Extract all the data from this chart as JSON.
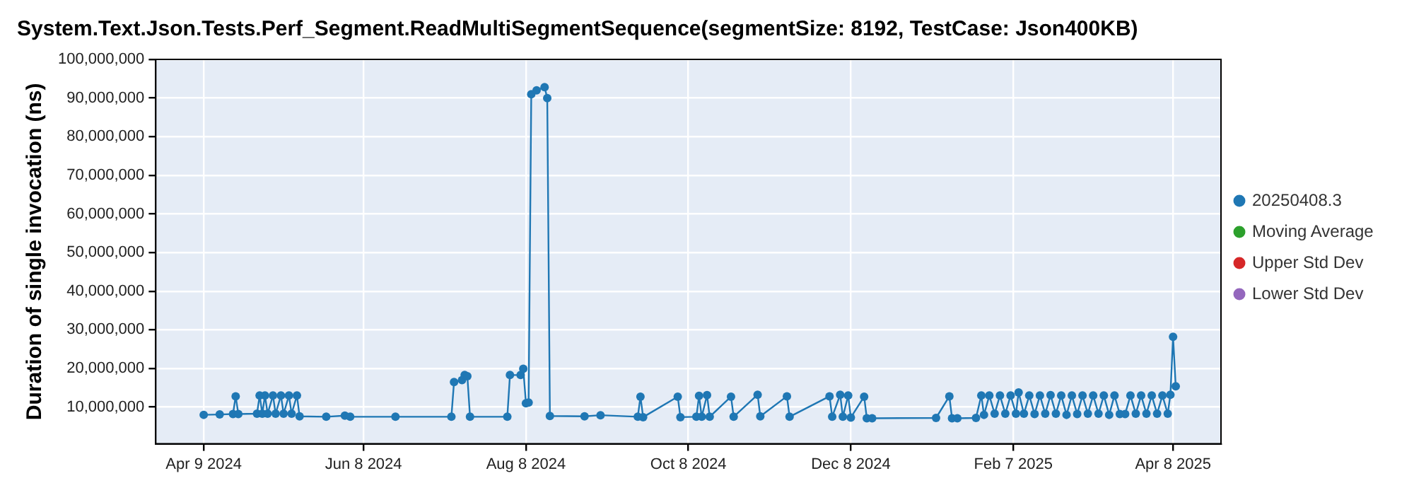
{
  "chart_data": {
    "type": "line",
    "title": "System.Text.Json.Tests.Perf_Segment.ReadMultiSegmentSequence(segmentSize: 8192, TestCase: Json400KB)",
    "ylabel": "Duration of single invocation (ns)",
    "xlim": [
      "2024-03-22",
      "2025-04-26"
    ],
    "xticks": [
      {
        "value": "2024-04-09",
        "label": "Apr 9 2024"
      },
      {
        "value": "2024-06-08",
        "label": "Jun 8 2024"
      },
      {
        "value": "2024-08-08",
        "label": "Aug 8 2024"
      },
      {
        "value": "2024-10-08",
        "label": "Oct 8 2024"
      },
      {
        "value": "2024-12-08",
        "label": "Dec 8 2024"
      },
      {
        "value": "2025-02-07",
        "label": "Feb 7 2025"
      },
      {
        "value": "2025-04-08",
        "label": "Apr 8 2025"
      }
    ],
    "ylim": [
      500000,
      100000000
    ],
    "yticks": [
      {
        "value": 10000000,
        "label": "10,000,000"
      },
      {
        "value": 20000000,
        "label": "20,000,000"
      },
      {
        "value": 30000000,
        "label": "30,000,000"
      },
      {
        "value": 40000000,
        "label": "40,000,000"
      },
      {
        "value": 50000000,
        "label": "50,000,000"
      },
      {
        "value": 60000000,
        "label": "60,000,000"
      },
      {
        "value": 70000000,
        "label": "70,000,000"
      },
      {
        "value": 80000000,
        "label": "80,000,000"
      },
      {
        "value": 90000000,
        "label": "90,000,000"
      },
      {
        "value": 100000000,
        "label": "100,000,000"
      }
    ],
    "grid": true,
    "legend": "right",
    "marker": "circle",
    "line_style": "solid",
    "series": [
      {
        "name": "20250408.3",
        "color": "#1f77b4",
        "x": [
          "2024-04-09",
          "2024-04-15",
          "2024-04-20",
          "2024-04-21",
          "2024-04-22",
          "2024-04-29",
          "2024-04-30",
          "2024-05-01",
          "2024-05-02",
          "2024-05-03",
          "2024-05-05",
          "2024-05-06",
          "2024-05-08",
          "2024-05-09",
          "2024-05-11",
          "2024-05-12",
          "2024-05-14",
          "2024-05-15",
          "2024-05-25",
          "2024-06-01",
          "2024-06-03",
          "2024-06-20",
          "2024-07-11",
          "2024-07-12",
          "2024-07-15",
          "2024-07-16",
          "2024-07-17",
          "2024-07-18",
          "2024-08-01",
          "2024-08-02",
          "2024-08-06",
          "2024-08-07",
          "2024-08-08",
          "2024-08-09",
          "2024-08-10",
          "2024-08-12",
          "2024-08-15",
          "2024-08-16",
          "2024-08-17",
          "2024-08-30",
          "2024-09-05",
          "2024-09-19",
          "2024-09-20",
          "2024-09-21",
          "2024-10-04",
          "2024-10-05",
          "2024-10-11",
          "2024-10-12",
          "2024-10-13",
          "2024-10-15",
          "2024-10-16",
          "2024-10-24",
          "2024-10-25",
          "2024-11-03",
          "2024-11-04",
          "2024-11-14",
          "2024-11-15",
          "2024-11-30",
          "2024-12-01",
          "2024-12-04",
          "2024-12-05",
          "2024-12-07",
          "2024-12-08",
          "2024-12-13",
          "2024-12-14",
          "2024-12-16",
          "2025-01-09",
          "2025-01-14",
          "2025-01-15",
          "2025-01-17",
          "2025-01-24",
          "2025-01-26",
          "2025-01-27",
          "2025-01-29",
          "2025-01-31",
          "2025-02-02",
          "2025-02-04",
          "2025-02-06",
          "2025-02-08",
          "2025-02-09",
          "2025-02-11",
          "2025-02-13",
          "2025-02-15",
          "2025-02-17",
          "2025-02-19",
          "2025-02-21",
          "2025-02-23",
          "2025-02-25",
          "2025-02-27",
          "2025-03-01",
          "2025-03-03",
          "2025-03-05",
          "2025-03-07",
          "2025-03-09",
          "2025-03-11",
          "2025-03-13",
          "2025-03-15",
          "2025-03-17",
          "2025-03-19",
          "2025-03-21",
          "2025-03-23",
          "2025-03-25",
          "2025-03-27",
          "2025-03-29",
          "2025-03-31",
          "2025-04-02",
          "2025-04-04",
          "2025-04-06",
          "2025-04-07",
          "2025-04-08",
          "2025-04-09"
        ],
        "values": [
          8000000,
          8100000,
          8200000,
          12800000,
          8200000,
          8300000,
          13000000,
          8300000,
          13000000,
          8300000,
          13000000,
          8300000,
          13000000,
          8300000,
          13000000,
          8300000,
          13000000,
          7600000,
          7500000,
          7800000,
          7500000,
          7500000,
          7500000,
          16500000,
          17000000,
          18300000,
          18000000,
          7500000,
          7500000,
          18300000,
          18300000,
          19900000,
          11000000,
          11200000,
          91000000,
          92000000,
          92800000,
          90000000,
          7700000,
          7600000,
          7900000,
          7500000,
          12700000,
          7400000,
          12700000,
          7400000,
          7500000,
          12900000,
          7500000,
          13100000,
          7500000,
          12700000,
          7500000,
          13200000,
          7600000,
          12800000,
          7500000,
          12800000,
          7500000,
          13200000,
          7500000,
          13000000,
          7300000,
          12700000,
          7100000,
          7100000,
          7200000,
          12800000,
          7100000,
          7100000,
          7200000,
          13000000,
          8000000,
          13000000,
          8300000,
          13000000,
          8300000,
          13000000,
          8300000,
          13800000,
          8300000,
          13000000,
          8200000,
          13000000,
          8300000,
          13100000,
          8300000,
          13000000,
          8000000,
          13000000,
          8200000,
          13000000,
          8300000,
          13000000,
          8300000,
          13000000,
          8000000,
          13000000,
          8200000,
          8200000,
          13000000,
          8300000,
          13000000,
          8300000,
          13000000,
          8300000,
          13000000,
          8300000,
          13200000,
          28200000,
          15400000
        ]
      },
      {
        "name": "Moving Average",
        "color": "#2ca02c"
      },
      {
        "name": "Upper Std Dev",
        "color": "#d62728"
      },
      {
        "name": "Lower Std Dev",
        "color": "#9467bd"
      }
    ]
  }
}
